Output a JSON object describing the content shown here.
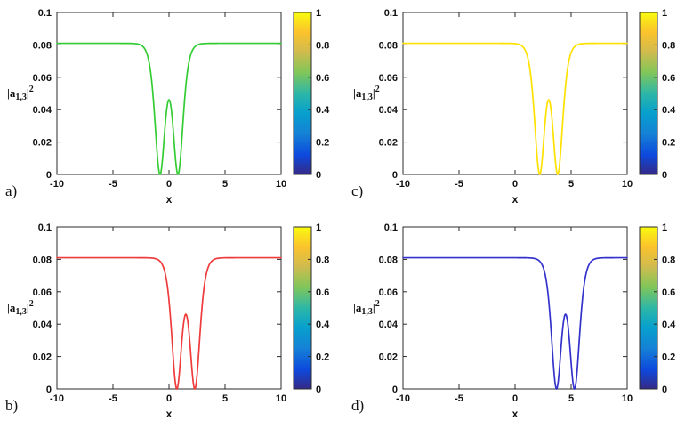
{
  "figure": {
    "background": "#ffffff",
    "description": "2x2 grid of soliton intensity profiles with parula colorbars"
  },
  "colormap_stops": [
    {
      "t": 0,
      "color": "#352a87"
    },
    {
      "t": 0.12,
      "color": "#0d49dd"
    },
    {
      "t": 0.25,
      "color": "#1581d6"
    },
    {
      "t": 0.38,
      "color": "#07a0cd"
    },
    {
      "t": 0.5,
      "color": "#2db7a7"
    },
    {
      "t": 0.63,
      "color": "#81c659"
    },
    {
      "t": 0.76,
      "color": "#d2bb4d"
    },
    {
      "t": 0.88,
      "color": "#fbc32c"
    },
    {
      "t": 1,
      "color": "#f9fb0e"
    }
  ],
  "chart_data": [
    {
      "type": "line",
      "panel_label": "a)",
      "xlabel": "x",
      "ylabel": "|a_{1,3}|^2",
      "ylabel_parts": {
        "open": "|a",
        "sub": "1,3",
        "close": "|",
        "sup": "2"
      },
      "xlim": [
        -10,
        10
      ],
      "ylim": [
        0,
        0.1
      ],
      "xticks": [
        -10,
        -5,
        0,
        5,
        10
      ],
      "xtick_labels": [
        "-10",
        "-5",
        "0",
        "5",
        "10"
      ],
      "yticks": [
        0,
        0.02,
        0.04,
        0.06,
        0.08,
        0.1
      ],
      "ytick_labels": [
        "0",
        "0.02",
        "0.04",
        "0.06",
        "0.08",
        "0.1"
      ],
      "line_color": "#33cc33",
      "curve": {
        "shape": "double-dark-soliton",
        "baseline": 0.081,
        "center": 0,
        "zero_offset": 0.8,
        "center_peak": 0.046,
        "steepness": 1.66
      },
      "colorbar": {
        "ticks": [
          0,
          0.2,
          0.4,
          0.6,
          0.8,
          1
        ],
        "tick_labels": [
          "0",
          "0.2",
          "0.4",
          "0.6",
          "0.8",
          "1"
        ],
        "colormap": "parula",
        "range": [
          0,
          1
        ]
      }
    },
    {
      "type": "line",
      "panel_label": "c)",
      "xlabel": "x",
      "ylabel": "|a_{1,3}|^2",
      "ylabel_parts": {
        "open": "|a",
        "sub": "1,3",
        "close": "|",
        "sup": "2"
      },
      "xlim": [
        -10,
        10
      ],
      "ylim": [
        0,
        0.1
      ],
      "xticks": [
        -10,
        -5,
        0,
        5,
        10
      ],
      "xtick_labels": [
        "-10",
        "-5",
        "0",
        "5",
        "10"
      ],
      "yticks": [
        0,
        0.02,
        0.04,
        0.06,
        0.08,
        0.1
      ],
      "ytick_labels": [
        "0",
        "0.02",
        "0.04",
        "0.06",
        "0.08",
        "0.1"
      ],
      "line_color": "#ffe100",
      "curve": {
        "shape": "double-dark-soliton",
        "baseline": 0.081,
        "center": 3,
        "zero_offset": 0.8,
        "center_peak": 0.046,
        "steepness": 1.66
      },
      "colorbar": {
        "ticks": [
          0,
          0.2,
          0.4,
          0.6,
          0.8,
          1
        ],
        "tick_labels": [
          "0",
          "0.2",
          "0.4",
          "0.6",
          "0.8",
          "1"
        ],
        "colormap": "parula",
        "range": [
          0,
          1
        ]
      }
    },
    {
      "type": "line",
      "panel_label": "b)",
      "xlabel": "x",
      "ylabel": "|a_{1,3}|^2",
      "ylabel_parts": {
        "open": "|a",
        "sub": "1,3",
        "close": "|",
        "sup": "2"
      },
      "xlim": [
        -10,
        10
      ],
      "ylim": [
        0,
        0.1
      ],
      "xticks": [
        -10,
        -5,
        0,
        5,
        10
      ],
      "xtick_labels": [
        "-10",
        "-5",
        "0",
        "5",
        "10"
      ],
      "yticks": [
        0,
        0.02,
        0.04,
        0.06,
        0.08,
        0.1
      ],
      "ytick_labels": [
        "0",
        "0.02",
        "0.04",
        "0.06",
        "0.08",
        "0.1"
      ],
      "line_color": "#ee3b3b",
      "curve": {
        "shape": "double-dark-soliton",
        "baseline": 0.081,
        "center": 1.5,
        "zero_offset": 0.8,
        "center_peak": 0.046,
        "steepness": 1.66
      },
      "colorbar": {
        "ticks": [
          0,
          0.2,
          0.4,
          0.6,
          0.8,
          1
        ],
        "tick_labels": [
          "0",
          "0.2",
          "0.4",
          "0.6",
          "0.8",
          "1"
        ],
        "colormap": "parula",
        "range": [
          0,
          1
        ]
      }
    },
    {
      "type": "line",
      "panel_label": "d)",
      "xlabel": "x",
      "ylabel": "|a_{1,3}|^2",
      "ylabel_parts": {
        "open": "|a",
        "sub": "1,3",
        "close": "|",
        "sup": "2"
      },
      "xlim": [
        -10,
        10
      ],
      "ylim": [
        0,
        0.1
      ],
      "xticks": [
        -10,
        -5,
        0,
        5,
        10
      ],
      "xtick_labels": [
        "-10",
        "-5",
        "0",
        "5",
        "10"
      ],
      "yticks": [
        0,
        0.02,
        0.04,
        0.06,
        0.08,
        0.1
      ],
      "ytick_labels": [
        "0",
        "0.02",
        "0.04",
        "0.06",
        "0.08",
        "0.1"
      ],
      "line_color": "#3333cc",
      "curve": {
        "shape": "double-dark-soliton",
        "baseline": 0.081,
        "center": 4.5,
        "zero_offset": 0.8,
        "center_peak": 0.046,
        "steepness": 1.66
      },
      "colorbar": {
        "ticks": [
          0,
          0.2,
          0.4,
          0.6,
          0.8,
          1
        ],
        "tick_labels": [
          "0",
          "0.2",
          "0.4",
          "0.6",
          "0.8",
          "1"
        ],
        "colormap": "parula",
        "range": [
          0,
          1
        ]
      }
    }
  ]
}
